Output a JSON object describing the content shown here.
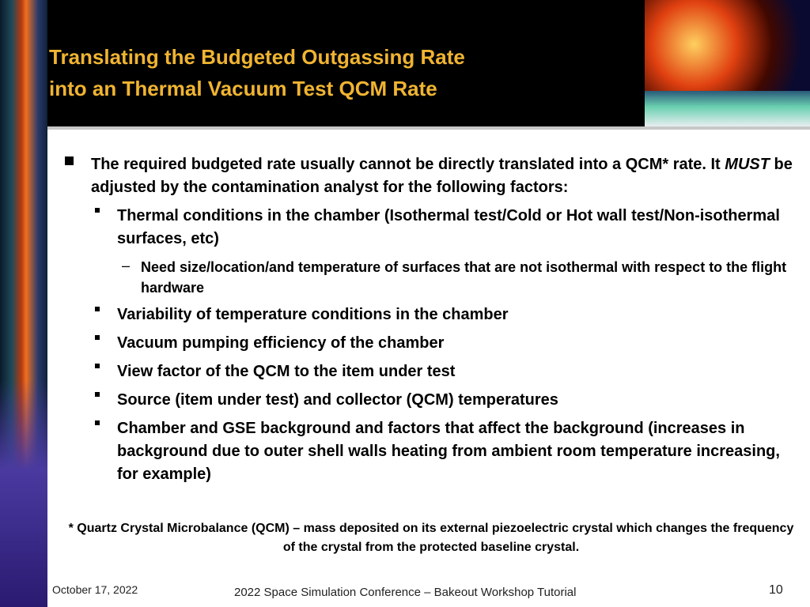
{
  "header": {
    "title": [
      "Translating the Budgeted Outgassing Rate",
      "into an Thermal Vacuum Test QCM Rate"
    ]
  },
  "body": {
    "bullets": [
      {
        "parts": [
          "The required budgeted rate usually cannot be directly translated into a QCM* rate. It ",
          "MUST",
          " be adjusted by the contamination analyst for the following factors:"
        ],
        "sub": [
          {
            "text": "Thermal conditions in the chamber (Isothermal test/Cold  or Hot wall test/Non-isothermal surfaces, etc)",
            "sub": [
              "Need size/location/and temperature of surfaces that are not isothermal with respect to the flight hardware"
            ]
          },
          {
            "text": "Variability of temperature conditions in the chamber"
          },
          {
            "text": "Vacuum pumping efficiency of the chamber"
          },
          {
            "text": "View factor of the QCM to the item under test"
          },
          {
            "text": "Source (item under test) and collector (QCM) temperatures"
          },
          {
            "text": "Chamber and GSE background and factors that affect the background (increases in background due to outer shell walls heating from ambient room temperature increasing, for example)"
          }
        ]
      }
    ],
    "footnote": "* Quartz Crystal Microbalance (QCM)  – mass deposited on its external piezoelectric crystal which changes the frequency of the crystal from the protected baseline crystal."
  },
  "footer": {
    "date": "October 17, 2022",
    "center": "2022 Space Simulation Conference – Bakeout Workshop Tutorial",
    "page": "10"
  }
}
